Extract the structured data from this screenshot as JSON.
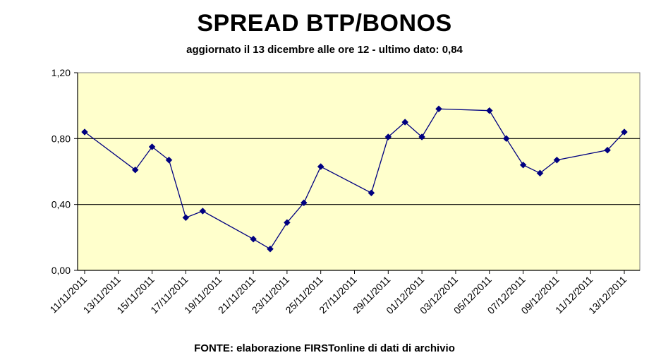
{
  "chart_data": {
    "type": "line",
    "title": "SPREAD BTP/BONOS",
    "subtitle": "aggiornato il 13 dicembre alle ore 12 - ultimo dato: 0,84",
    "source": "FONTE: elaborazione FIRSTonline di dati di archivio",
    "xlabel": "",
    "ylabel": "",
    "xlim": [
      "11/11/2011",
      "13/12/2011"
    ],
    "ylim": [
      0,
      1.2
    ],
    "y_ticks": [
      "0,00",
      "0,40",
      "0,80",
      "1,20"
    ],
    "x_ticks": [
      "11/11/2011",
      "13/11/2011",
      "15/11/2011",
      "17/11/2011",
      "19/11/2011",
      "21/11/2011",
      "23/11/2011",
      "25/11/2011",
      "27/11/2011",
      "29/11/2011",
      "01/12/2011",
      "03/12/2011",
      "05/12/2011",
      "07/12/2011",
      "09/12/2011",
      "11/12/2011",
      "13/12/2011"
    ],
    "grid": "horizontal",
    "background_color": "#FFFFCC",
    "line_color": "#000080",
    "marker": "diamond",
    "series": [
      {
        "points": [
          {
            "x": "11/11/2011",
            "y": 0.84
          },
          {
            "x": "14/11/2011",
            "y": 0.61
          },
          {
            "x": "15/11/2011",
            "y": 0.75
          },
          {
            "x": "16/11/2011",
            "y": 0.67
          },
          {
            "x": "17/11/2011",
            "y": 0.32
          },
          {
            "x": "18/11/2011",
            "y": 0.36
          },
          {
            "x": "21/11/2011",
            "y": 0.19
          },
          {
            "x": "22/11/2011",
            "y": 0.13
          },
          {
            "x": "23/11/2011",
            "y": 0.29
          },
          {
            "x": "24/11/2011",
            "y": 0.41
          },
          {
            "x": "25/11/2011",
            "y": 0.63
          },
          {
            "x": "28/11/2011",
            "y": 0.47
          },
          {
            "x": "29/11/2011",
            "y": 0.81
          },
          {
            "x": "30/11/2011",
            "y": 0.9
          },
          {
            "x": "01/12/2011",
            "y": 0.81
          },
          {
            "x": "02/12/2011",
            "y": 0.98
          },
          {
            "x": "05/12/2011",
            "y": 0.97
          },
          {
            "x": "06/12/2011",
            "y": 0.8
          },
          {
            "x": "07/12/2011",
            "y": 0.64
          },
          {
            "x": "08/12/2011",
            "y": 0.59
          },
          {
            "x": "09/12/2011",
            "y": 0.67
          },
          {
            "x": "12/12/2011",
            "y": 0.73
          },
          {
            "x": "13/12/2011",
            "y": 0.84
          }
        ]
      }
    ]
  }
}
